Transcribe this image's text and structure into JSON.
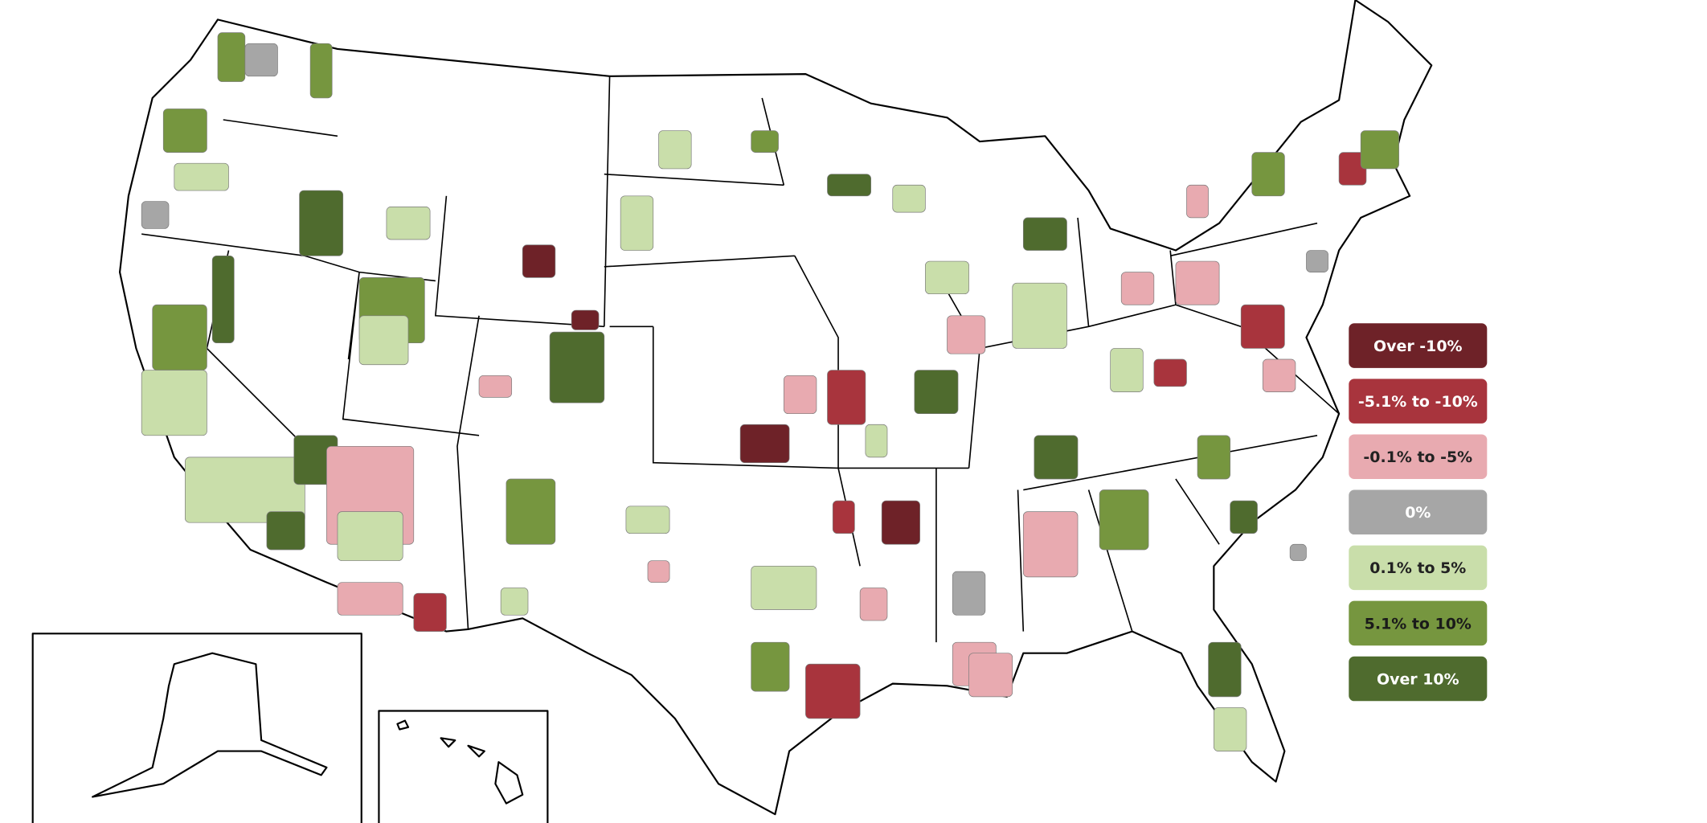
{
  "legend": {
    "items": [
      {
        "label": "Over -10%",
        "color": "#6e2228",
        "text_color": "#ffffff"
      },
      {
        "label": "-5.1% to -10%",
        "color": "#a8343d",
        "text_color": "#ffffff"
      },
      {
        "label": "-0.1% to -5%",
        "color": "#e8aab0",
        "text_color": "#222222"
      },
      {
        "label": "0%",
        "color": "#a6a6a6",
        "text_color": "#ffffff"
      },
      {
        "label": "0.1% to 5%",
        "color": "#c9deaa",
        "text_color": "#222222"
      },
      {
        "label": "5.1% to 10%",
        "color": "#76963f",
        "text_color": "#1a1a1a"
      },
      {
        "label": "Over 10%",
        "color": "#4f6b2e",
        "text_color": "#ffffff"
      }
    ]
  }
}
